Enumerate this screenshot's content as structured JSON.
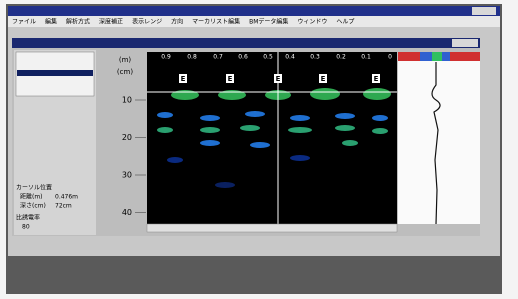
{
  "menu": [
    "ファイル",
    "編集",
    "解析方式",
    "深度補正",
    "表示レンジ",
    "方向",
    "マーカリスト編集",
    "BMデータ編集",
    "ウィンドウ",
    "ヘルプ"
  ],
  "axis": {
    "top_unit": "(m)",
    "depth_unit": "(cm)",
    "top_ticks": [
      "0.9",
      "0.8",
      "0.7",
      "0.6",
      "0.5",
      "0.4",
      "0.3",
      "0.2",
      "0.1",
      "0"
    ],
    "depth_ticks": [
      "10",
      "20",
      "30",
      "40"
    ]
  },
  "markers": [
    "E",
    "E",
    "E",
    "E",
    "E"
  ],
  "info": {
    "cursor_title": "カーソル位置",
    "distance_label": "距離(m)",
    "distance_value": "0.476m",
    "depth_label": "深さ(cm)",
    "depth_value": "72cm",
    "permittivity_label": "比誘電率",
    "permittivity_value": "80"
  }
}
